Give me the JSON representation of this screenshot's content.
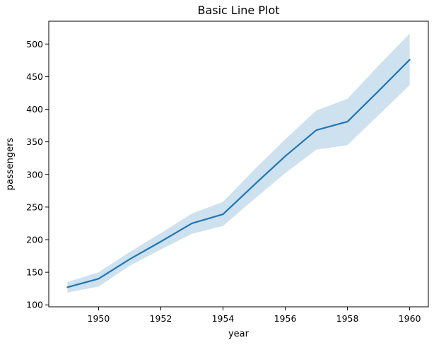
{
  "chart_data": {
    "type": "line",
    "title": "Basic Line Plot",
    "xlabel": "year",
    "ylabel": "passengers",
    "xlim": [
      1948.4,
      1960.6
    ],
    "ylim": [
      97,
      535
    ],
    "x_ticks": [
      1950,
      1952,
      1954,
      1956,
      1958,
      1960
    ],
    "y_ticks": [
      100,
      150,
      200,
      250,
      300,
      350,
      400,
      450,
      500
    ],
    "grid": false,
    "colors": {
      "line": "#1f77b4",
      "band": "#1f77b4"
    },
    "series": [
      {
        "x": [
          1949,
          1950,
          1951,
          1952,
          1953,
          1954,
          1955,
          1956,
          1957,
          1958,
          1959,
          1960
        ],
        "values": [
          127,
          140,
          170,
          197,
          225,
          239,
          284,
          328,
          368,
          381,
          428,
          476
        ],
        "ci_lower": [
          119,
          128,
          160,
          185,
          209,
          221,
          262,
          302,
          338,
          345,
          391,
          437
        ],
        "ci_upper": [
          135,
          150,
          181,
          210,
          240,
          258,
          307,
          354,
          398,
          416,
          467,
          516
        ]
      }
    ]
  }
}
